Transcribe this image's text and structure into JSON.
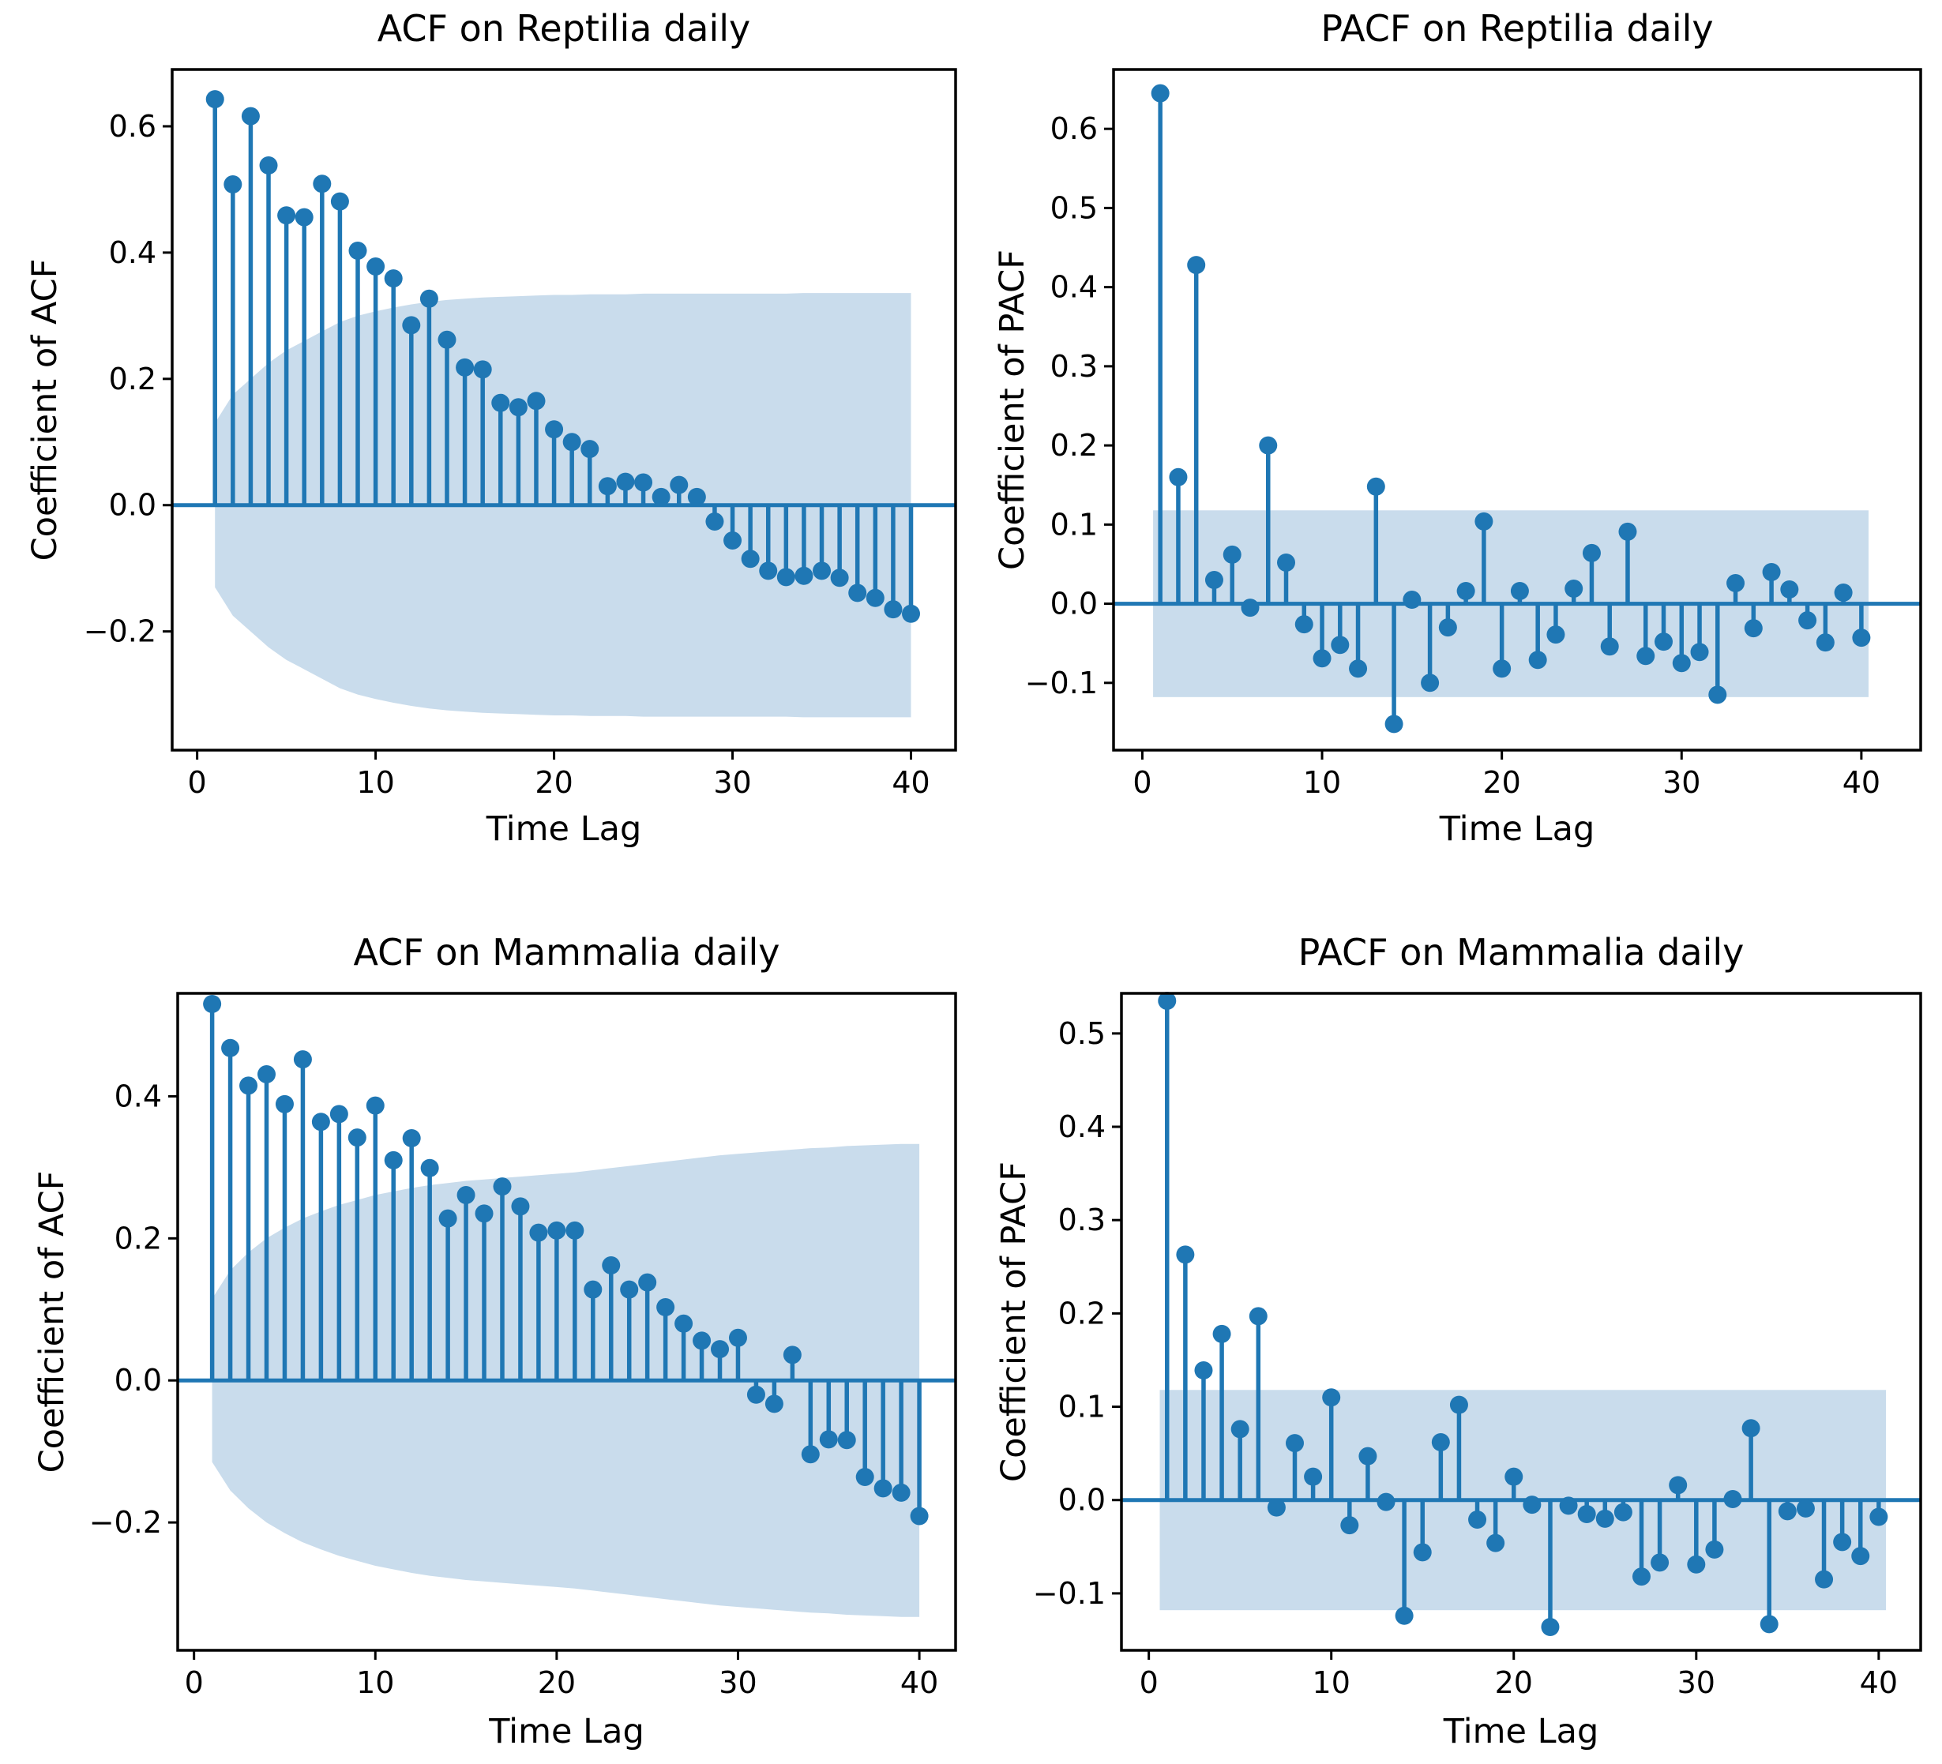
{
  "colors": {
    "stem": "#1f77b4",
    "marker": "#1f77b4",
    "confidence_band": "#c9dcec",
    "spine": "#000000",
    "text": "#000000"
  },
  "lags": [
    1,
    2,
    3,
    4,
    5,
    6,
    7,
    8,
    9,
    10,
    11,
    12,
    13,
    14,
    15,
    16,
    17,
    18,
    19,
    20,
    21,
    22,
    23,
    24,
    25,
    26,
    27,
    28,
    29,
    30,
    31,
    32,
    33,
    34,
    35,
    36,
    37,
    38,
    39,
    40
  ],
  "chart_data": [
    {
      "id": "acf-reptilia",
      "type": "stem",
      "title": "ACF on Reptilia daily",
      "xlabel": "Time Lag",
      "ylabel": "Coefficient of ACF",
      "values": [
        0.643,
        0.508,
        0.616,
        0.538,
        0.459,
        0.456,
        0.509,
        0.481,
        0.403,
        0.378,
        0.359,
        0.285,
        0.327,
        0.262,
        0.218,
        0.215,
        0.162,
        0.155,
        0.165,
        0.12,
        0.1,
        0.089,
        0.03,
        0.037,
        0.036,
        0.013,
        0.032,
        0.013,
        -0.026,
        -0.056,
        -0.085,
        -0.104,
        -0.114,
        -0.112,
        -0.104,
        -0.115,
        -0.139,
        -0.147,
        -0.165,
        -0.172
      ],
      "conf_band": {
        "kind": "varying",
        "halfwidths": [
          0.13,
          0.175,
          0.2,
          0.225,
          0.245,
          0.26,
          0.275,
          0.29,
          0.3,
          0.307,
          0.313,
          0.318,
          0.322,
          0.325,
          0.327,
          0.329,
          0.33,
          0.331,
          0.332,
          0.333,
          0.333,
          0.334,
          0.334,
          0.334,
          0.335,
          0.335,
          0.335,
          0.335,
          0.335,
          0.335,
          0.335,
          0.335,
          0.335,
          0.336,
          0.336,
          0.336,
          0.336,
          0.336,
          0.336,
          0.336
        ]
      },
      "xlim": [
        -1.4,
        42.5
      ],
      "ylim": [
        -0.388,
        0.69
      ],
      "xticks": {
        "values": [
          0,
          10,
          20,
          30,
          40
        ],
        "labels": [
          "0",
          "10",
          "20",
          "30",
          "40"
        ]
      },
      "yticks": {
        "values": [
          0.6,
          0.4,
          0.2,
          0.0,
          -0.2
        ],
        "labels": [
          "0.6",
          "0.4",
          "0.2",
          "0.0",
          "−0.2"
        ]
      },
      "grid": false,
      "legend": null
    },
    {
      "id": "pacf-reptilia",
      "type": "stem",
      "title": "PACF on Reptilia daily",
      "xlabel": "Time Lag",
      "ylabel": "Coefficient of PACF",
      "values": [
        0.645,
        0.16,
        0.428,
        0.03,
        0.062,
        -0.005,
        0.2,
        0.052,
        -0.026,
        -0.069,
        -0.052,
        -0.082,
        0.148,
        -0.152,
        0.005,
        -0.1,
        -0.03,
        0.016,
        0.104,
        -0.082,
        0.016,
        -0.071,
        -0.039,
        0.019,
        0.064,
        -0.054,
        0.091,
        -0.066,
        -0.048,
        -0.075,
        -0.061,
        -0.115,
        0.026,
        -0.031,
        0.04,
        0.018,
        -0.021,
        -0.049,
        0.014,
        -0.043
      ],
      "conf_band": {
        "kind": "constant",
        "halfwidth": 0.118,
        "x_start": 0.6,
        "x_end": 40.4
      },
      "xlim": [
        -1.6,
        43.3
      ],
      "ylim": [
        -0.185,
        0.675
      ],
      "xticks": {
        "values": [
          0,
          10,
          20,
          30,
          40
        ],
        "labels": [
          "0",
          "10",
          "20",
          "30",
          "40"
        ]
      },
      "yticks": {
        "values": [
          0.6,
          0.5,
          0.4,
          0.3,
          0.2,
          0.1,
          0.0,
          -0.1
        ],
        "labels": [
          "0.6",
          "0.5",
          "0.4",
          "0.3",
          "0.2",
          "0.1",
          "0.0",
          "−0.1"
        ]
      },
      "grid": false,
      "legend": null
    },
    {
      "id": "acf-mammalia",
      "type": "stem",
      "title": "ACF on Mammalia daily",
      "xlabel": "Time Lag",
      "ylabel": "Coefficient of ACF",
      "values": [
        0.53,
        0.468,
        0.415,
        0.431,
        0.389,
        0.452,
        0.364,
        0.375,
        0.342,
        0.387,
        0.31,
        0.341,
        0.299,
        0.228,
        0.261,
        0.235,
        0.273,
        0.245,
        0.208,
        0.211,
        0.211,
        0.128,
        0.162,
        0.128,
        0.138,
        0.103,
        0.08,
        0.056,
        0.044,
        0.06,
        -0.02,
        -0.033,
        0.036,
        -0.104,
        -0.083,
        -0.084,
        -0.136,
        -0.152,
        -0.158,
        -0.191
      ],
      "conf_band": {
        "kind": "varying",
        "halfwidths": [
          0.115,
          0.155,
          0.18,
          0.2,
          0.215,
          0.228,
          0.238,
          0.247,
          0.254,
          0.261,
          0.266,
          0.271,
          0.275,
          0.278,
          0.281,
          0.283,
          0.285,
          0.287,
          0.289,
          0.291,
          0.293,
          0.296,
          0.299,
          0.302,
          0.305,
          0.308,
          0.311,
          0.314,
          0.317,
          0.319,
          0.321,
          0.323,
          0.325,
          0.327,
          0.328,
          0.33,
          0.331,
          0.332,
          0.333,
          0.333
        ]
      },
      "xlim": [
        -0.9,
        42.0
      ],
      "ylim": [
        -0.38,
        0.545
      ],
      "xticks": {
        "values": [
          0,
          10,
          20,
          30,
          40
        ],
        "labels": [
          "0",
          "10",
          "20",
          "30",
          "40"
        ]
      },
      "yticks": {
        "values": [
          0.4,
          0.2,
          0.0,
          -0.2
        ],
        "labels": [
          "0.4",
          "0.2",
          "0.0",
          "−0.2"
        ]
      },
      "grid": false,
      "legend": null
    },
    {
      "id": "pacf-mammalia",
      "type": "stem",
      "title": "PACF on Mammalia daily",
      "xlabel": "Time Lag",
      "ylabel": "Coefficient of PACF",
      "values": [
        0.535,
        0.263,
        0.139,
        0.178,
        0.076,
        0.197,
        -0.008,
        0.061,
        0.025,
        0.11,
        -0.027,
        0.047,
        -0.002,
        -0.124,
        -0.056,
        0.062,
        0.102,
        -0.021,
        -0.046,
        0.025,
        -0.005,
        -0.136,
        -0.006,
        -0.015,
        -0.02,
        -0.013,
        -0.082,
        -0.067,
        0.016,
        -0.069,
        -0.053,
        0.001,
        0.077,
        -0.133,
        -0.012,
        -0.009,
        -0.085,
        -0.045,
        -0.06,
        -0.018
      ],
      "conf_band": {
        "kind": "constant",
        "halfwidth": 0.118,
        "x_start": 0.6,
        "x_end": 40.4
      },
      "xlim": [
        -1.5,
        42.3
      ],
      "ylim": [
        -0.161,
        0.543
      ],
      "xticks": {
        "values": [
          0,
          10,
          20,
          30,
          40
        ],
        "labels": [
          "0",
          "10",
          "20",
          "30",
          "40"
        ]
      },
      "yticks": {
        "values": [
          0.5,
          0.4,
          0.3,
          0.2,
          0.1,
          0.0,
          -0.1
        ],
        "labels": [
          "0.5",
          "0.4",
          "0.3",
          "0.2",
          "0.1",
          "0.0",
          "−0.1"
        ]
      },
      "grid": false,
      "legend": null
    }
  ]
}
